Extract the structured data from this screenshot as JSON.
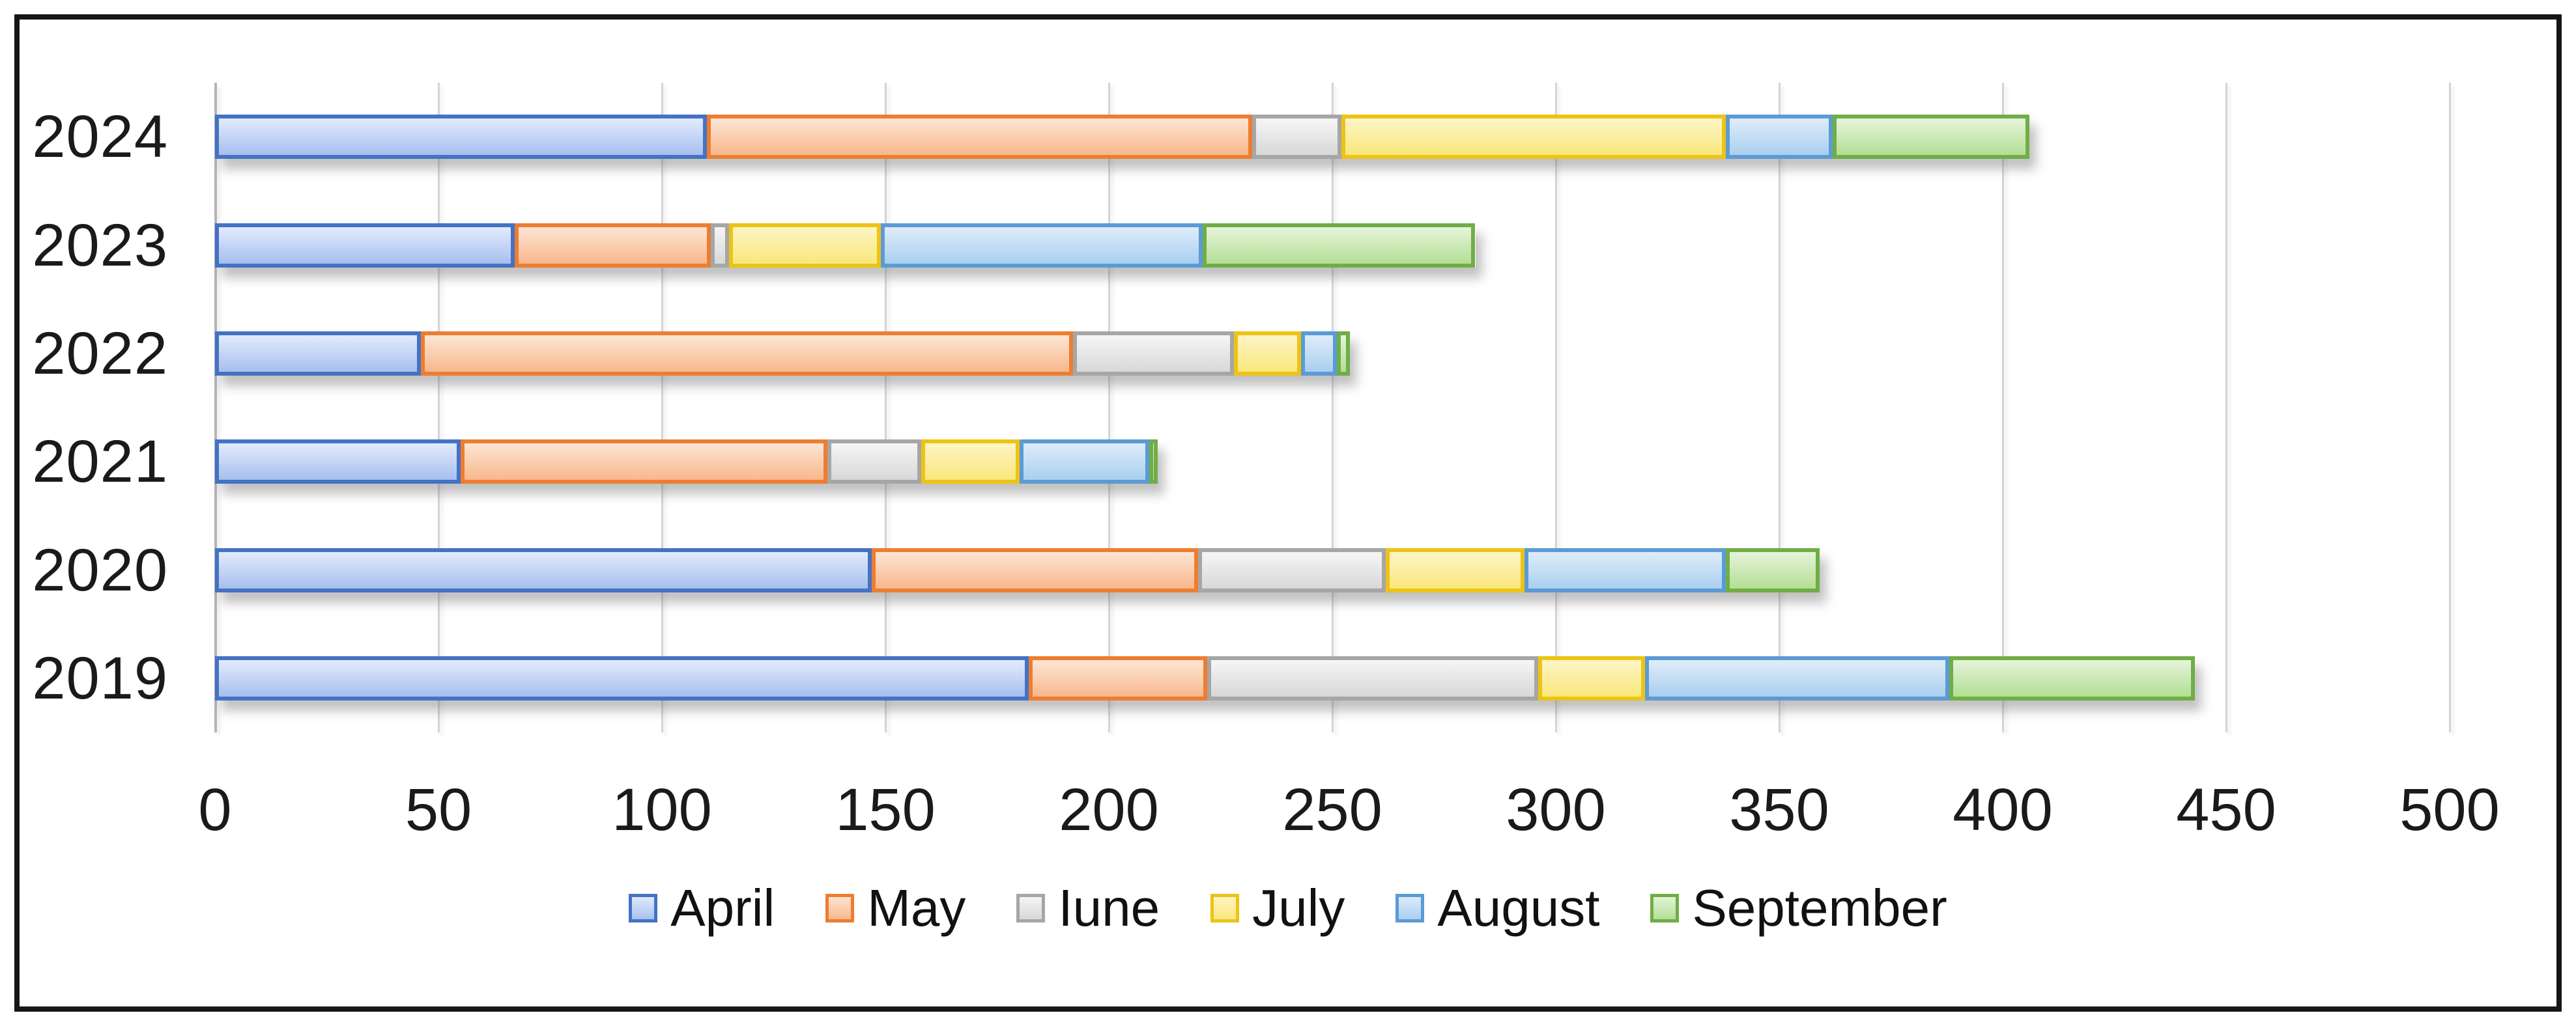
{
  "frame": {
    "border_color": "#161616",
    "background": "#ffffff"
  },
  "chart_data": {
    "type": "bar",
    "orientation": "horizontal",
    "stacked": true,
    "title": "",
    "xlabel": "",
    "ylabel": "",
    "categories": [
      "2024",
      "2023",
      "2022",
      "2021",
      "2020",
      "2019"
    ],
    "series": [
      {
        "name": "April",
        "values": [
          110,
          67,
          46,
          55,
          147,
          182
        ]
      },
      {
        "name": "May",
        "values": [
          122,
          44,
          146,
          82,
          73,
          40
        ]
      },
      {
        "name": "Iune",
        "values": [
          20,
          4,
          36,
          21,
          42,
          74
        ]
      },
      {
        "name": "July",
        "values": [
          86,
          34,
          15,
          22,
          31,
          24
        ]
      },
      {
        "name": "August",
        "values": [
          24,
          72,
          8,
          29,
          45,
          68
        ]
      },
      {
        "name": "September",
        "values": [
          44,
          61,
          3,
          2,
          21,
          55
        ]
      }
    ],
    "totals": [
      406,
      282,
      254,
      211,
      359,
      443
    ],
    "xlim": [
      0,
      500
    ],
    "xticks": [
      0,
      50,
      100,
      150,
      200,
      250,
      300,
      350,
      400,
      450,
      500
    ],
    "grid": "vertical",
    "gridline_color": "#d4d4d4",
    "axis_line_color": "#b5b5b5",
    "legend_position": "bottom",
    "legend_labels": [
      "April",
      "May",
      "Iune",
      "July",
      "August",
      "September"
    ],
    "series_colors": {
      "April": {
        "border": "#4472c4",
        "fill_top": "#dfe9fb",
        "fill_bottom": "#a9c0ef"
      },
      "May": {
        "border": "#ed7d31",
        "fill_top": "#fce3d1",
        "fill_bottom": "#f8b98e"
      },
      "Iune": {
        "border": "#a6a6a6",
        "fill_top": "#f4f4f4",
        "fill_bottom": "#d9d9d9"
      },
      "July": {
        "border": "#edc315",
        "fill_top": "#fdf4c3",
        "fill_bottom": "#f9e87d"
      },
      "August": {
        "border": "#5b9bd5",
        "fill_top": "#dcebf8",
        "fill_bottom": "#abd0f0"
      },
      "September": {
        "border": "#70ad47",
        "fill_top": "#e3f3d6",
        "fill_bottom": "#b5df96"
      }
    }
  }
}
